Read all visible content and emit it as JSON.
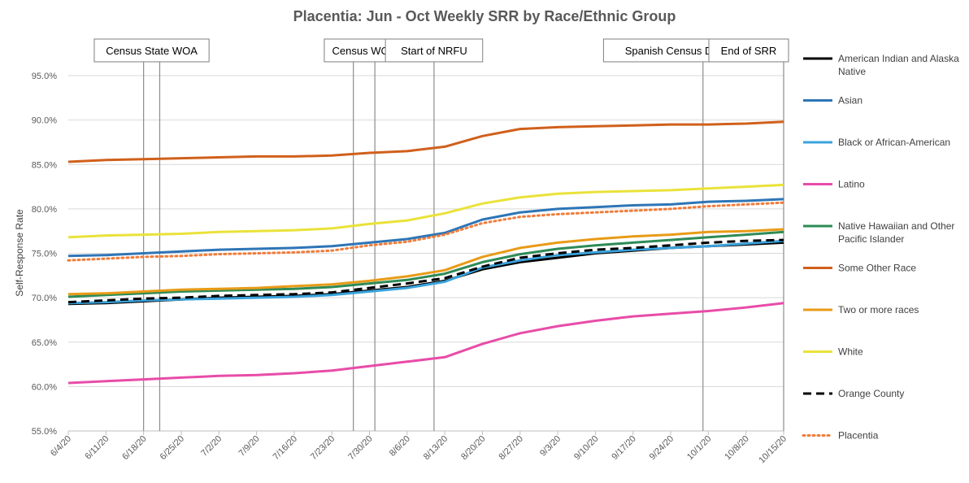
{
  "chart_data": {
    "type": "line",
    "title": "Placentia: Jun - Oct Weekly SRR by Race/Ethnic Group",
    "xlabel": "",
    "ylabel": "Self-Response Rate",
    "ylim": [
      55,
      95
    ],
    "yticks": [
      "55.0%",
      "60.0%",
      "65.0%",
      "70.0%",
      "75.0%",
      "80.0%",
      "85.0%",
      "90.0%",
      "95.0%"
    ],
    "ytick_values": [
      55,
      60,
      65,
      70,
      75,
      80,
      85,
      90,
      95
    ],
    "x_dates": [
      "6/4/20",
      "6/11/20",
      "6/18/20",
      "6/25/20",
      "7/2/20",
      "7/9/20",
      "7/16/20",
      "7/23/20",
      "7/30/20",
      "8/6/20",
      "8/13/20",
      "8/20/20",
      "8/27/20",
      "9/3/20",
      "9/10/20",
      "9/17/20",
      "9/24/20",
      "10/1/20",
      "10/8/20",
      "10/15/20"
    ],
    "grid": "horizontal",
    "legend_position": "right",
    "annotations": [
      {
        "label": "Census State WOA",
        "dates": [
          "6/18/20",
          "6/21/20"
        ]
      },
      {
        "label": "Census WOA",
        "dates": [
          "7/27/20",
          "7/31/20"
        ]
      },
      {
        "label": "Start of NRFU",
        "dates": [
          "8/11/20"
        ]
      },
      {
        "label": "Spanish Census Day of Action",
        "dates": [
          "9/30/20"
        ]
      },
      {
        "label": "End of SRR",
        "dates": [
          "10/15/20"
        ]
      }
    ],
    "series": [
      {
        "name": "American Indian and Alaska Native",
        "color": "#000000",
        "style": "solid",
        "values": [
          69.3,
          69.4,
          69.6,
          69.8,
          70.0,
          70.1,
          70.2,
          70.4,
          70.8,
          71.2,
          71.9,
          73.2,
          74.0,
          74.5,
          75.0,
          75.3,
          75.6,
          75.8,
          76.0,
          76.2
        ]
      },
      {
        "name": "Asian",
        "color": "#2E75B6",
        "style": "solid",
        "values": [
          74.7,
          74.8,
          75.0,
          75.2,
          75.4,
          75.5,
          75.6,
          75.8,
          76.2,
          76.6,
          77.3,
          78.8,
          79.6,
          80.0,
          80.2,
          80.4,
          80.5,
          80.8,
          80.9,
          81.1
        ]
      },
      {
        "name": "Black or African-American",
        "color": "#3BA3DC",
        "style": "solid",
        "values": [
          69.4,
          69.5,
          69.7,
          69.8,
          69.9,
          70.0,
          70.1,
          70.3,
          70.7,
          71.1,
          71.8,
          73.4,
          74.2,
          74.8,
          75.1,
          75.4,
          75.6,
          75.8,
          76.1,
          76.4
        ]
      },
      {
        "name": "Latino",
        "color": "#E84CA8",
        "style": "solid",
        "values": [
          60.4,
          60.6,
          60.8,
          61.0,
          61.2,
          61.3,
          61.5,
          61.8,
          62.3,
          62.8,
          63.3,
          64.8,
          66.0,
          66.8,
          67.4,
          67.9,
          68.2,
          68.5,
          68.9,
          69.4
        ]
      },
      {
        "name": "Native Hawaiian and Other Pacific Islander",
        "color": "#2E8B57",
        "style": "solid",
        "values": [
          70.1,
          70.3,
          70.5,
          70.7,
          70.8,
          70.9,
          71.0,
          71.2,
          71.6,
          72.0,
          72.7,
          74.0,
          74.9,
          75.5,
          75.9,
          76.2,
          76.5,
          76.8,
          77.1,
          77.4
        ]
      },
      {
        "name": "Some Other Race",
        "color": "#D0601B",
        "style": "solid",
        "values": [
          85.3,
          85.5,
          85.6,
          85.7,
          85.8,
          85.9,
          85.9,
          86.0,
          86.3,
          86.5,
          87.0,
          88.2,
          89.0,
          89.2,
          89.3,
          89.4,
          89.5,
          89.5,
          89.6,
          89.8
        ]
      },
      {
        "name": "Two or more races",
        "color": "#E89B17",
        "style": "solid",
        "values": [
          70.4,
          70.5,
          70.7,
          70.9,
          71.0,
          71.1,
          71.3,
          71.5,
          71.9,
          72.4,
          73.1,
          74.6,
          75.6,
          76.2,
          76.6,
          76.9,
          77.1,
          77.4,
          77.5,
          77.7
        ]
      },
      {
        "name": "White",
        "color": "#EAE23A",
        "style": "solid",
        "values": [
          76.8,
          77.0,
          77.1,
          77.2,
          77.4,
          77.5,
          77.6,
          77.8,
          78.3,
          78.7,
          79.5,
          80.6,
          81.3,
          81.7,
          81.9,
          82.0,
          82.1,
          82.3,
          82.5,
          82.7
        ]
      },
      {
        "name": "Orange County",
        "color": "#000000",
        "style": "dashed",
        "values": [
          69.5,
          69.7,
          69.9,
          70.0,
          70.2,
          70.3,
          70.4,
          70.6,
          71.1,
          71.6,
          72.2,
          73.5,
          74.5,
          75.0,
          75.4,
          75.6,
          75.9,
          76.2,
          76.4,
          76.5
        ]
      },
      {
        "name": "Placentia",
        "color": "#F07C3A",
        "style": "dotted",
        "values": [
          74.2,
          74.4,
          74.6,
          74.7,
          74.9,
          75.0,
          75.1,
          75.3,
          75.9,
          76.3,
          77.1,
          78.4,
          79.1,
          79.4,
          79.6,
          79.8,
          80.0,
          80.3,
          80.5,
          80.7
        ]
      }
    ]
  }
}
